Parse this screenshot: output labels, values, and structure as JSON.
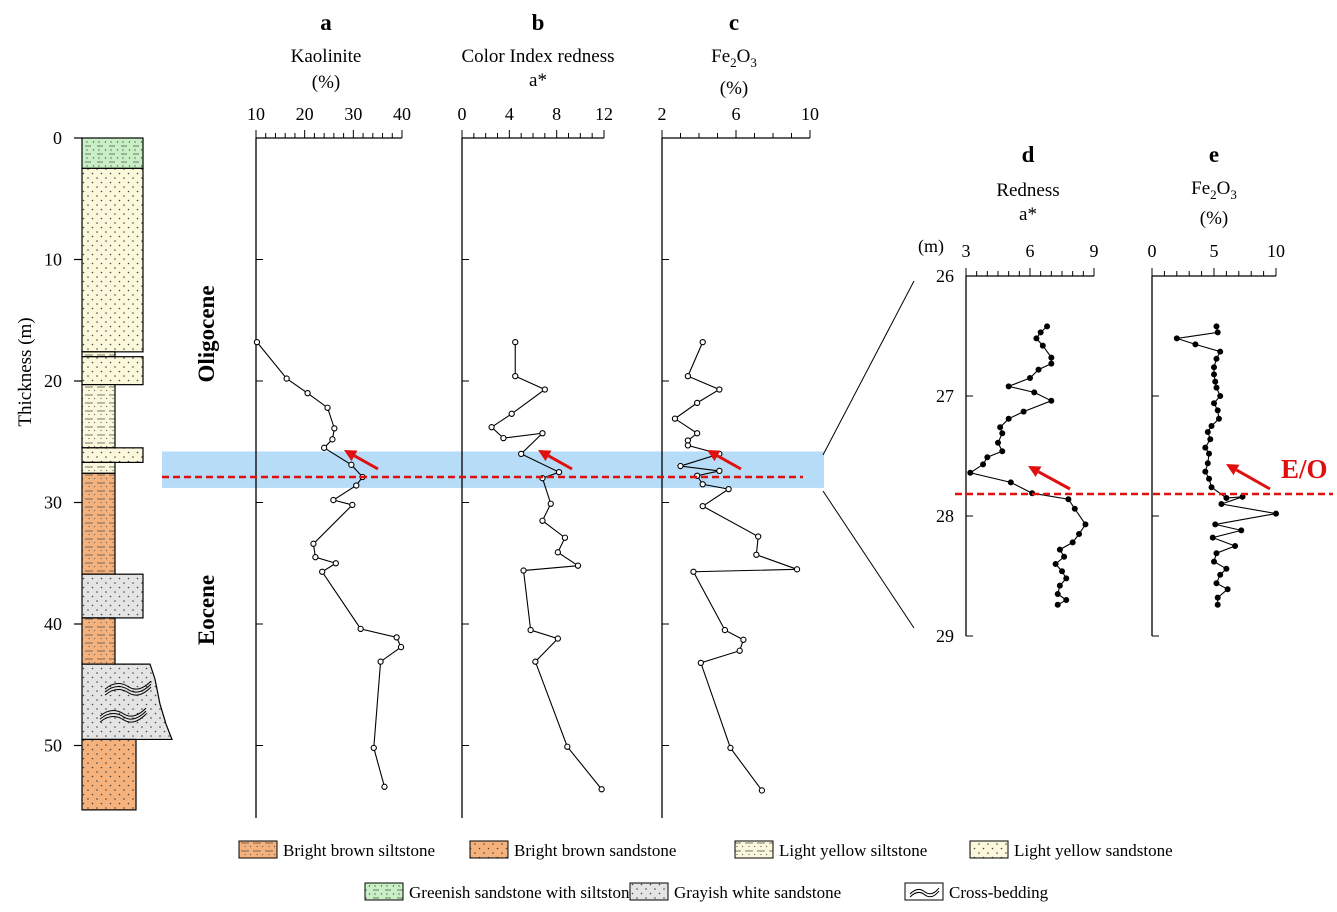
{
  "chart_data": {
    "type": "line",
    "y_axis": {
      "label": "Thickness (m)",
      "ticks": [
        "0",
        "10",
        "20",
        "30",
        "40",
        "50"
      ],
      "range": [
        0,
        55
      ]
    },
    "epochs": {
      "upper": "Oligocene",
      "lower": "Eocene"
    },
    "boundary": {
      "label": "E/O",
      "depth_m": 27.8
    },
    "highlight_band_m": [
      25.8,
      28.8
    ],
    "panels": [
      {
        "id": "a",
        "title": "a",
        "variable": "Kaolinite",
        "unit": "(%)",
        "xlim": [
          10,
          40
        ],
        "ticks": [
          "10",
          "20",
          "30",
          "40"
        ],
        "points": [
          [
            10.2,
            16.8
          ],
          [
            16.3,
            19.8
          ],
          [
            20.6,
            21.0
          ],
          [
            24.7,
            22.2
          ],
          [
            26.1,
            23.9
          ],
          [
            25.7,
            24.8
          ],
          [
            24.0,
            25.5
          ],
          [
            29.6,
            26.9
          ],
          [
            31.9,
            27.9
          ],
          [
            30.6,
            28.6
          ],
          [
            25.9,
            29.8
          ],
          [
            29.8,
            30.2
          ],
          [
            21.8,
            33.4
          ],
          [
            22.2,
            34.5
          ],
          [
            26.4,
            35.0
          ],
          [
            23.6,
            35.7
          ],
          [
            31.5,
            40.4
          ],
          [
            38.9,
            41.1
          ],
          [
            39.8,
            41.9
          ],
          [
            35.6,
            43.1
          ],
          [
            34.2,
            50.2
          ],
          [
            36.4,
            53.4
          ]
        ]
      },
      {
        "id": "b",
        "title": "b",
        "variable": "Color Index redness",
        "unit": "a*",
        "xlim": [
          0,
          12
        ],
        "ticks": [
          "0",
          "4",
          "8",
          "12"
        ],
        "points": [
          [
            4.5,
            16.8
          ],
          [
            4.5,
            19.6
          ],
          [
            7.0,
            20.7
          ],
          [
            4.2,
            22.7
          ],
          [
            2.5,
            23.8
          ],
          [
            3.5,
            24.7
          ],
          [
            6.8,
            24.3
          ],
          [
            5.0,
            26.0
          ],
          [
            8.2,
            27.5
          ],
          [
            6.8,
            28.0
          ],
          [
            7.5,
            30.1
          ],
          [
            6.8,
            31.5
          ],
          [
            8.7,
            32.9
          ],
          [
            8.1,
            34.1
          ],
          [
            9.8,
            35.2
          ],
          [
            5.2,
            35.6
          ],
          [
            5.8,
            40.5
          ],
          [
            8.1,
            41.2
          ],
          [
            6.2,
            43.1
          ],
          [
            8.9,
            50.1
          ],
          [
            11.8,
            53.6
          ]
        ]
      },
      {
        "id": "c",
        "title": "c",
        "variable": "Fe2O3",
        "variable_main": "Fe",
        "variable_sub1": "2",
        "variable_mid": "O",
        "variable_sub2": "3",
        "unit": "(%)",
        "xlim": [
          2,
          10
        ],
        "ticks": [
          "2",
          "6",
          "10"
        ],
        "points": [
          [
            4.2,
            16.8
          ],
          [
            3.4,
            19.6
          ],
          [
            5.1,
            20.7
          ],
          [
            3.9,
            21.8
          ],
          [
            2.7,
            23.1
          ],
          [
            3.9,
            24.3
          ],
          [
            3.4,
            24.9
          ],
          [
            3.4,
            25.3
          ],
          [
            5.1,
            26.0
          ],
          [
            3.0,
            27.0
          ],
          [
            5.1,
            27.4
          ],
          [
            3.9,
            27.8
          ],
          [
            4.2,
            28.5
          ],
          [
            5.6,
            28.9
          ],
          [
            4.2,
            30.3
          ],
          [
            7.2,
            32.8
          ],
          [
            7.1,
            34.3
          ],
          [
            9.3,
            35.5
          ],
          [
            3.7,
            35.7
          ],
          [
            5.4,
            40.5
          ],
          [
            6.4,
            41.3
          ],
          [
            6.2,
            42.2
          ],
          [
            4.1,
            43.2
          ],
          [
            5.7,
            50.2
          ],
          [
            7.4,
            53.7
          ]
        ]
      },
      {
        "id": "d",
        "title": "d",
        "variable": "Redness",
        "unit": "a*",
        "xlim": [
          3,
          9
        ],
        "ticks": [
          "3",
          "6",
          "9"
        ],
        "ylim": [
          26,
          29
        ],
        "yticks": [
          "26",
          "27",
          "28",
          "29"
        ],
        "ylabel_unit": "(m)",
        "points": [
          [
            6.8,
            26.42
          ],
          [
            6.5,
            26.47
          ],
          [
            6.3,
            26.52
          ],
          [
            6.6,
            26.58
          ],
          [
            7.0,
            26.68
          ],
          [
            7.0,
            26.73
          ],
          [
            6.4,
            26.78
          ],
          [
            6.0,
            26.85
          ],
          [
            5.0,
            26.92
          ],
          [
            6.2,
            26.97
          ],
          [
            7.0,
            27.04
          ],
          [
            5.7,
            27.13
          ],
          [
            5.0,
            27.19
          ],
          [
            4.6,
            27.26
          ],
          [
            4.7,
            27.31
          ],
          [
            4.5,
            27.39
          ],
          [
            4.7,
            27.46
          ],
          [
            4.0,
            27.51
          ],
          [
            3.8,
            27.57
          ],
          [
            3.2,
            27.64
          ],
          [
            5.1,
            27.72
          ],
          [
            6.1,
            27.81
          ],
          [
            7.8,
            27.86
          ],
          [
            8.1,
            27.94
          ],
          [
            8.6,
            28.07
          ],
          [
            8.3,
            28.15
          ],
          [
            8.0,
            28.22
          ],
          [
            7.4,
            28.28
          ],
          [
            7.6,
            28.34
          ],
          [
            7.2,
            28.4
          ],
          [
            7.5,
            28.46
          ],
          [
            7.7,
            28.52
          ],
          [
            7.4,
            28.58
          ],
          [
            7.3,
            28.65
          ],
          [
            7.7,
            28.7
          ],
          [
            7.3,
            28.74
          ]
        ]
      },
      {
        "id": "e",
        "title": "e",
        "variable": "Fe2O3",
        "variable_main": "Fe",
        "variable_sub1": "2",
        "variable_mid": "O",
        "variable_sub2": "3",
        "unit": "(%)",
        "xlim": [
          0,
          10
        ],
        "ticks": [
          "0",
          "5",
          "10"
        ],
        "points": [
          [
            5.2,
            26.42
          ],
          [
            5.3,
            26.47
          ],
          [
            2.0,
            26.52
          ],
          [
            3.5,
            26.57
          ],
          [
            5.5,
            26.63
          ],
          [
            5.2,
            26.69
          ],
          [
            5.0,
            26.76
          ],
          [
            5.0,
            26.82
          ],
          [
            5.1,
            26.88
          ],
          [
            5.2,
            26.93
          ],
          [
            5.5,
            27.0
          ],
          [
            5.0,
            27.06
          ],
          [
            5.3,
            27.12
          ],
          [
            5.4,
            27.19
          ],
          [
            4.8,
            27.25
          ],
          [
            4.5,
            27.3
          ],
          [
            4.7,
            27.36
          ],
          [
            4.3,
            27.43
          ],
          [
            4.6,
            27.48
          ],
          [
            4.5,
            27.56
          ],
          [
            4.3,
            27.63
          ],
          [
            4.6,
            27.69
          ],
          [
            4.8,
            27.76
          ],
          [
            6.0,
            27.85
          ],
          [
            7.3,
            27.84
          ],
          [
            5.6,
            27.9
          ],
          [
            10.0,
            27.98
          ],
          [
            5.1,
            28.07
          ],
          [
            7.2,
            28.12
          ],
          [
            4.9,
            28.18
          ],
          [
            6.7,
            28.25
          ],
          [
            5.2,
            28.31
          ],
          [
            5.0,
            28.38
          ],
          [
            6.0,
            28.44
          ],
          [
            5.5,
            28.49
          ],
          [
            5.2,
            28.56
          ],
          [
            6.1,
            28.61
          ],
          [
            5.3,
            28.68
          ],
          [
            5.3,
            28.74
          ]
        ]
      }
    ],
    "lithology": [
      {
        "top": 0.0,
        "bottom": 2.5,
        "right": 143,
        "fill": "#c9f0c4",
        "pattern": "siltsand"
      },
      {
        "top": 2.5,
        "bottom": 17.6,
        "right": 143,
        "fill": "#fcf8dc",
        "pattern": "sand"
      },
      {
        "top": 17.6,
        "bottom": 18.0,
        "right": 115,
        "fill": "#fcf8dc",
        "pattern": "silt"
      },
      {
        "top": 18.0,
        "bottom": 20.3,
        "right": 143,
        "fill": "#fcf8dc",
        "pattern": "sand"
      },
      {
        "top": 20.3,
        "bottom": 25.5,
        "right": 115,
        "fill": "#fcf8dc",
        "pattern": "silt"
      },
      {
        "top": 25.5,
        "bottom": 26.7,
        "right": 143,
        "fill": "#fcf8dc",
        "pattern": "sand"
      },
      {
        "top": 26.7,
        "bottom": 27.6,
        "right": 115,
        "fill": "#fcf8dc",
        "pattern": "silt"
      },
      {
        "top": 27.6,
        "bottom": 35.9,
        "right": 115,
        "fill": "#f6b27c",
        "pattern": "silt"
      },
      {
        "top": 35.9,
        "bottom": 39.5,
        "right": 143,
        "fill": "#e4e4e4",
        "pattern": "sand"
      },
      {
        "top": 39.5,
        "bottom": 43.3,
        "right": 115,
        "fill": "#f6b27c",
        "pattern": "silt"
      },
      {
        "top": 43.3,
        "bottom": 49.5,
        "right": 160,
        "fill": "#e4e4e4",
        "pattern": "sand"
      },
      {
        "top": 49.5,
        "bottom": 55.3,
        "right": 136,
        "fill": "#f6b27c",
        "pattern": "sand"
      }
    ],
    "legend": [
      {
        "label": "Bright brown siltstone",
        "fill": "#f6b27c",
        "pattern": "silt"
      },
      {
        "label": "Bright brown sandstone",
        "fill": "#f6b27c",
        "pattern": "sand"
      },
      {
        "label": "Light yellow siltstone",
        "fill": "#fcf8dc",
        "pattern": "silt"
      },
      {
        "label": "Light yellow sandstone",
        "fill": "#fcf8dc",
        "pattern": "sand"
      },
      {
        "label": "Greenish sandstone with siltstone",
        "fill": "#c9f0c4",
        "pattern": "siltsand"
      },
      {
        "label": "Grayish white sandstone",
        "fill": "#e4e4e4",
        "pattern": "sand"
      },
      {
        "label": "Cross-bedding",
        "fill": "#ffffff",
        "pattern": "cross"
      }
    ],
    "colors": {
      "boundary": "#e01010",
      "band": "#a9d6f7",
      "line": "#000000"
    }
  }
}
